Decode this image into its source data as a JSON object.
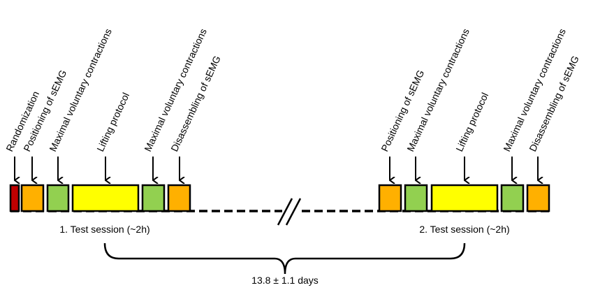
{
  "sessions": [
    {
      "label": "1. Test session (~2h)",
      "steps": [
        "Randomization",
        "Positioning of sEMG",
        "Maximal voluntary contractions",
        "Lifting protocol",
        "Maximal voluntary contractions",
        "Disassembling of sEMG"
      ]
    },
    {
      "label": "2. Test session (~2h)",
      "steps": [
        "Positioning of sEMG",
        "Maximal voluntary contractions",
        "Lifting protocol",
        "Maximal voluntary contractions",
        "Disassembling of sEMG"
      ]
    }
  ],
  "interval": "13.8 ± 1.1 days"
}
